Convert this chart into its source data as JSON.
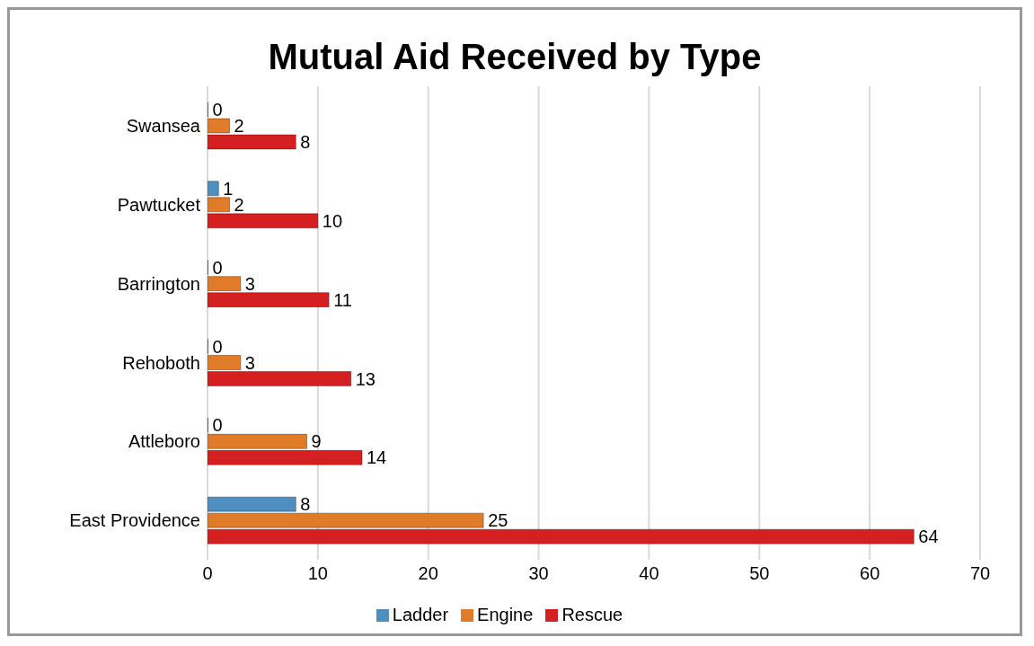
{
  "chart_data": {
    "type": "bar",
    "orientation": "horizontal",
    "title": "Mutual Aid Received by Type",
    "categories": [
      "Swansea",
      "Pawtucket",
      "Barrington",
      "Rehoboth",
      "Attleboro",
      "East Providence"
    ],
    "series": [
      {
        "name": "Ladder",
        "color": "#4f8fbf",
        "values": [
          0,
          1,
          0,
          0,
          0,
          8
        ]
      },
      {
        "name": "Engine",
        "color": "#e07b2a",
        "values": [
          2,
          2,
          3,
          3,
          9,
          25
        ]
      },
      {
        "name": "Rescue",
        "color": "#d42020",
        "values": [
          8,
          10,
          11,
          13,
          14,
          64
        ]
      }
    ],
    "xlim": [
      0,
      70
    ],
    "xticks": [
      0,
      10,
      20,
      30,
      40,
      50,
      60,
      70
    ],
    "grid": "x",
    "legend": "bottom",
    "data_labels": true
  }
}
